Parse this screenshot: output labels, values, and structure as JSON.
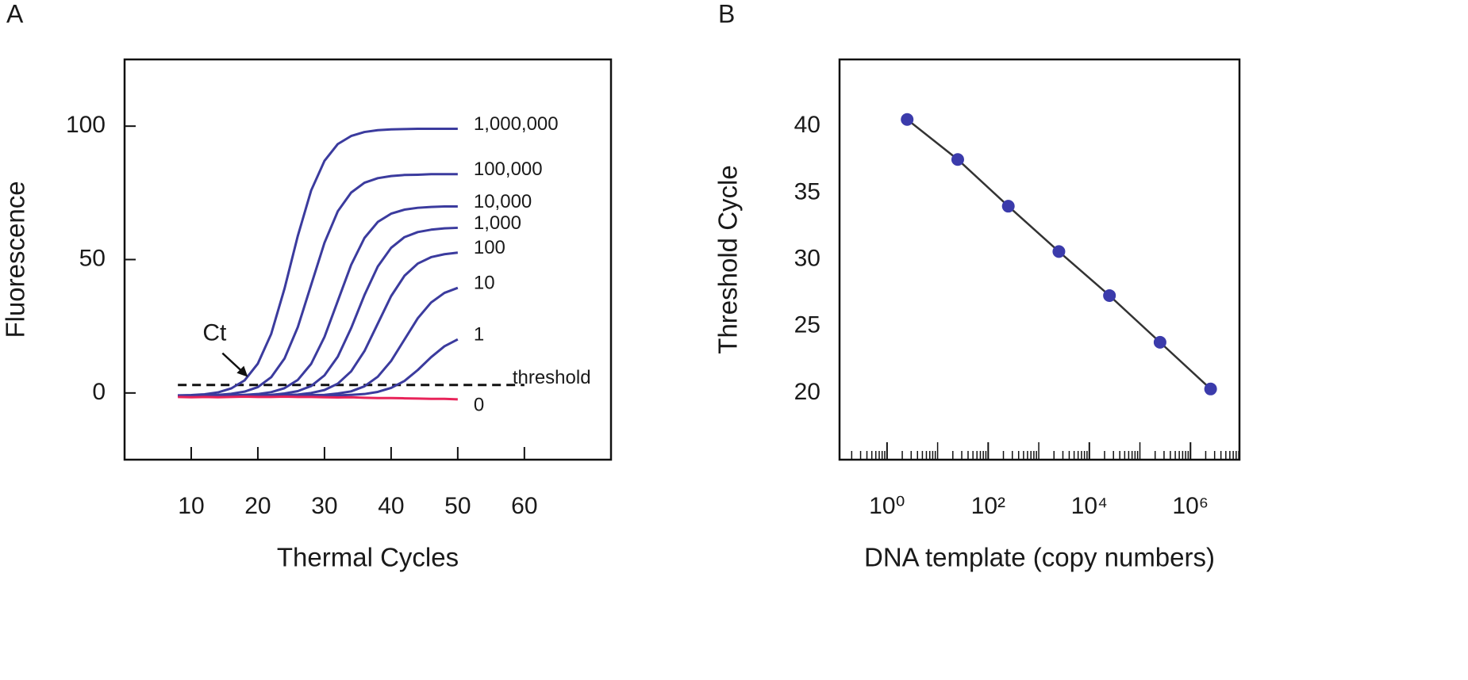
{
  "chart_data": [
    {
      "type": "line",
      "panel": "A",
      "xlabel": "Thermal Cycles",
      "ylabel": "Fluorescence",
      "xlim": [
        0,
        73
      ],
      "xticks": [
        10,
        20,
        30,
        40,
        50,
        60
      ],
      "ylim": [
        -25,
        125
      ],
      "yticks": [
        0,
        50,
        100
      ],
      "x": [
        8,
        10,
        12,
        14,
        16,
        18,
        20,
        22,
        24,
        26,
        28,
        30,
        32,
        34,
        36,
        38,
        40,
        42,
        44,
        46,
        48,
        50
      ],
      "series": [
        {
          "name": "1,000,000",
          "color": "#3b3b9e",
          "values": [
            -0.9,
            -0.8,
            -0.5,
            0.2,
            1.7,
            4.7,
            11,
            22.1,
            39.1,
            58.9,
            75.9,
            87,
            93.3,
            96.3,
            97.8,
            98.5,
            98.8,
            98.9,
            99,
            99,
            99,
            99
          ]
        },
        {
          "name": "100,000",
          "color": "#3b3b9e",
          "values": [
            -1,
            -0.9,
            -0.8,
            -0.7,
            -0.3,
            0.5,
            2.2,
            5.9,
            12.9,
            24.7,
            40.5,
            56.3,
            68.1,
            75.1,
            78.8,
            80.5,
            81.3,
            81.7,
            81.8,
            82,
            82,
            82
          ]
        },
        {
          "name": "10,000",
          "color": "#3b3b9e",
          "values": [
            -1,
            -1,
            -1,
            -0.9,
            -0.9,
            -0.7,
            -0.4,
            0.3,
            1.8,
            4.9,
            10.9,
            21,
            34.5,
            48,
            58.1,
            64.1,
            67.2,
            68.7,
            69.4,
            69.7,
            69.9,
            69.9
          ]
        },
        {
          "name": "1,000",
          "color": "#3b3b9e",
          "values": [
            -1,
            -1,
            -1,
            -1,
            -1,
            -0.9,
            -0.9,
            -0.7,
            -0.2,
            0.7,
            2.6,
            6.6,
            13.6,
            24.3,
            36.7,
            47.4,
            54.4,
            58.4,
            60.3,
            61.2,
            61.7,
            61.9
          ]
        },
        {
          "name": "100",
          "color": "#3b3b9e",
          "values": [
            -1,
            -1,
            -1,
            -1,
            -1,
            -1,
            -0.9,
            -0.9,
            -0.8,
            -0.6,
            0,
            1.1,
            3.5,
            8.1,
            15.7,
            26,
            36.3,
            43.9,
            48.5,
            50.9,
            52,
            52.6
          ]
        },
        {
          "name": "10",
          "color": "#3b3b9e",
          "values": [
            -1,
            -1,
            -1,
            -1,
            -1,
            -1,
            -1,
            -1,
            -1,
            -0.9,
            -0.8,
            -0.7,
            -0.2,
            0.6,
            2.5,
            6.1,
            12,
            20,
            28,
            33.9,
            37.5,
            39.4
          ]
        },
        {
          "name": "1",
          "color": "#3b3b9e",
          "values": [
            -1,
            -1,
            -1,
            -1,
            -1,
            -1,
            -1,
            -1,
            -1,
            -1,
            -1,
            -1,
            -0.9,
            -0.7,
            -0.4,
            0.4,
            1.9,
            4.5,
            8.6,
            13.4,
            17.5,
            20.1
          ]
        },
        {
          "name": "0",
          "color": "#e8245a",
          "values": [
            -1.5,
            -1.6,
            -1.5,
            -1.6,
            -1.5,
            -1.4,
            -1.5,
            -1.5,
            -1.4,
            -1.5,
            -1.5,
            -1.6,
            -1.7,
            -1.6,
            -1.8,
            -1.9,
            -1.9,
            -2,
            -2.1,
            -2.2,
            -2.2,
            -2.4
          ]
        }
      ],
      "threshold": {
        "label": "threshold",
        "value": 3,
        "x": [
          8,
          60
        ]
      },
      "annotations": [
        {
          "text": "Ct",
          "x": 18.5,
          "y": 6
        }
      ]
    },
    {
      "type": "scatter",
      "panel": "B",
      "xlabel": "DNA template (copy numbers)",
      "ylabel": "Threshold Cycle",
      "log_x": true,
      "xlim": [
        0.115,
        9300000
      ],
      "xticks": [
        {
          "value": 1,
          "label": "10⁰"
        },
        {
          "value": 100,
          "label": "10²"
        },
        {
          "value": 10000,
          "label": "10⁴"
        },
        {
          "value": 1000000,
          "label": "10⁶"
        }
      ],
      "xminorticks": [
        0.2,
        0.3,
        0.4,
        0.5,
        0.6,
        0.7,
        0.8,
        0.9,
        2,
        3,
        4,
        5,
        6,
        7,
        8,
        9,
        10,
        20,
        30,
        40,
        50,
        60,
        70,
        80,
        90,
        200,
        300,
        400,
        500,
        600,
        700,
        800,
        900,
        1000,
        2000,
        3000,
        4000,
        5000,
        6000,
        7000,
        8000,
        9000,
        20000,
        30000,
        40000,
        50000,
        60000,
        70000,
        80000,
        90000,
        100000,
        200000,
        300000,
        400000,
        500000,
        600000,
        700000,
        800000,
        900000,
        2000000,
        3000000,
        4000000,
        5000000,
        6000000,
        7000000,
        8000000,
        9000000
      ],
      "ylim": [
        15,
        45
      ],
      "yticks": [
        20,
        25,
        30,
        35,
        40
      ],
      "x": [
        2.5,
        25,
        250,
        2500,
        25000,
        250000,
        2500000
      ],
      "series": [
        {
          "color": "#3b3bab",
          "values": [
            40.5,
            37.5,
            34.0,
            30.6,
            27.3,
            23.8,
            20.3
          ]
        }
      ]
    }
  ]
}
